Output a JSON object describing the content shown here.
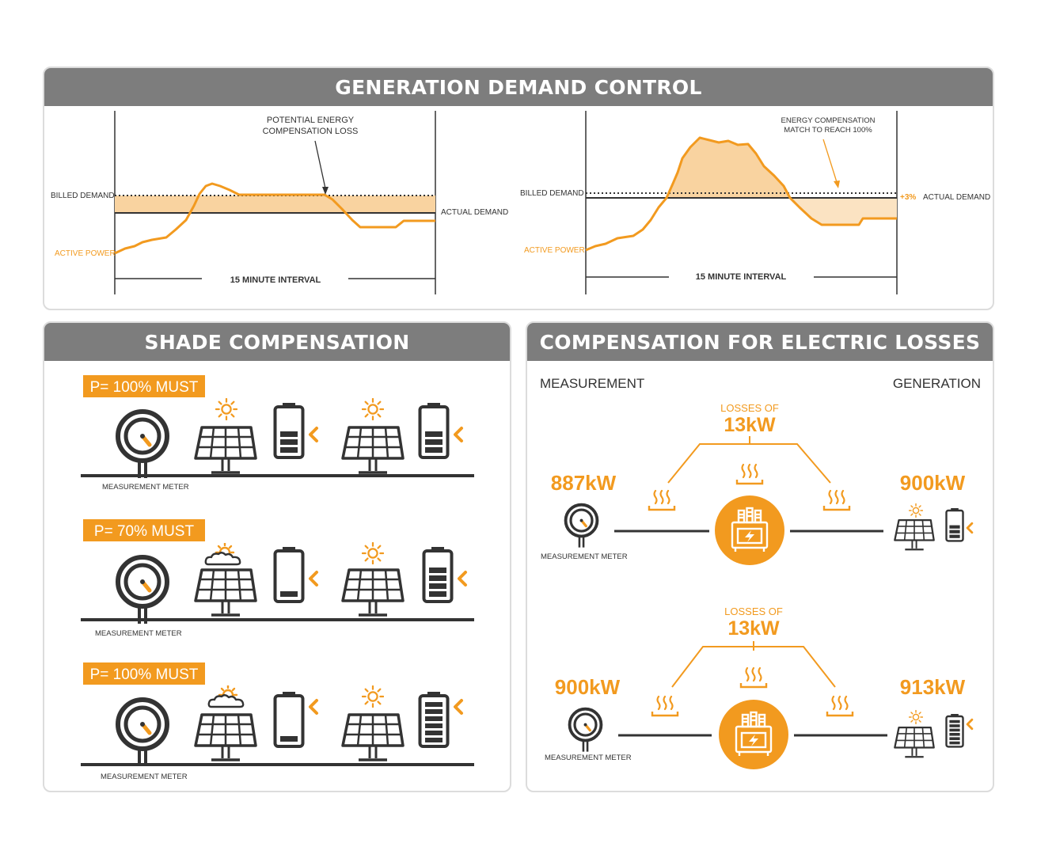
{
  "colors": {
    "accent": "#f29a1f",
    "header": "#7d7d7d",
    "icon": "#333333",
    "fill": "#f9d3a0"
  },
  "gdc": {
    "title": "GENERATION DEMAND CONTROL",
    "left": {
      "billed_demand": "BILLED DEMAND",
      "active_power": "ACTIVE POWER",
      "actual_demand": "ACTUAL DEMAND",
      "annotation_line1": "POTENTIAL ENERGY",
      "annotation_line2": "COMPENSATION LOSS",
      "interval": "15 MINUTE INTERVAL"
    },
    "right": {
      "billed_demand": "BILLED DEMAND",
      "active_power": "ACTIVE POWER",
      "plus": "+3%",
      "actual_demand": "ACTUAL DEMAND",
      "annotation_line1": "ENERGY COMPENSATION",
      "annotation_line2": "MATCH TO REACH 100%",
      "interval": "15 MINUTE INTERVAL"
    }
  },
  "shade": {
    "title": "SHADE COMPENSATION",
    "rows": [
      {
        "badge": "P= 100% MUST",
        "meter_label": "MEASUREMENT METER"
      },
      {
        "badge": "P= 70% MUST",
        "meter_label": "MEASUREMENT METER"
      },
      {
        "badge": "P= 100% MUST",
        "meter_label": "MEASUREMENT METER"
      }
    ]
  },
  "losses": {
    "title": "COMPENSATION FOR ELECTRIC LOSSES",
    "measurement": "MEASUREMENT",
    "generation": "GENERATION",
    "rows": [
      {
        "loss_label": "LOSSES OF",
        "loss_value": "13kW",
        "left_value": "887kW",
        "right_value": "900kW",
        "meter_label": "MEASUREMENT METER"
      },
      {
        "loss_label": "LOSSES OF",
        "loss_value": "13kW",
        "left_value": "900kW",
        "right_value": "913kW",
        "meter_label": "MEASUREMENT METER"
      }
    ]
  }
}
